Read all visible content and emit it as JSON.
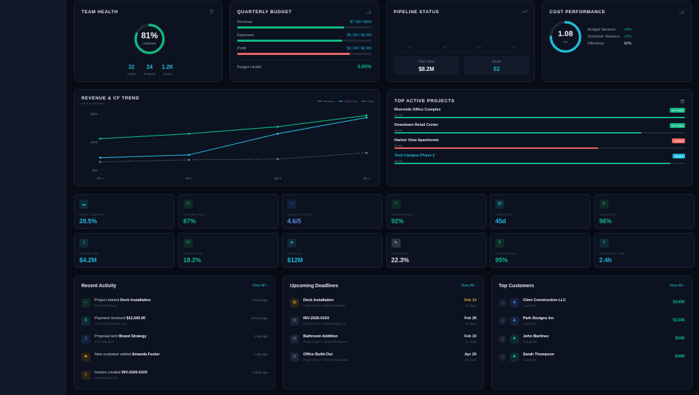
{
  "team_health": {
    "title": "TEAM HEALTH",
    "icon": "users-icon",
    "utilization_pct": 81,
    "utilization_label": "81%",
    "utilization_caption": "Utilization",
    "stats": [
      {
        "value": "32",
        "label": "Active"
      },
      {
        "value": "24",
        "label": "Projects"
      },
      {
        "value": "1.2K",
        "label": "Hours"
      }
    ]
  },
  "quarterly_budget": {
    "title": "QUARTERLY BUDGET",
    "icon": "bar-chart-icon",
    "rows": [
      {
        "label": "Revenue",
        "value": "$7.2M / $9M",
        "fill_pct": 80,
        "color": "#10b981"
      },
      {
        "label": "Expenses",
        "value": "$5.1M / $6.5M",
        "fill_pct": 78,
        "color": "#10b981"
      },
      {
        "label": "Profit",
        "value": "$2.1M / $2.5M",
        "fill_pct": 84,
        "color": "#f06767"
      }
    ],
    "health_label": "Budget Health",
    "health_value": "5.65%"
  },
  "pipeline": {
    "title": "PIPELINE STATUS",
    "icon": "trending-up-icon",
    "quarters": [
      "Q1",
      "Q2",
      "Q3",
      "Q4"
    ],
    "total_label": "Total Value",
    "total_value": "$8.2M",
    "deals_label": "Deals",
    "deals_value": "52"
  },
  "cost_performance": {
    "title": "COST PERFORMANCE",
    "icon": "bar-chart-icon",
    "cpi_value": "1.08",
    "cpi_label": "CPI",
    "cpi_ring_pct": 75,
    "rows": [
      {
        "label": "Budget Variance",
        "value": "+8%",
        "color": "#10b981"
      },
      {
        "label": "Schedule Variance",
        "value": "+2%",
        "color": "#10b981"
      },
      {
        "label": "Efficiency",
        "value": "92%",
        "color": "#e5e7eb"
      }
    ]
  },
  "trend": {
    "title": "REVENUE & CF TREND",
    "subtitle": "4-week performance",
    "legend": [
      {
        "name": "Revenue",
        "color": "#10b981"
      },
      {
        "name": "Cash Flow",
        "color": "#22b8d8"
      },
      {
        "name": "Profit",
        "color": "#6b7280"
      }
    ]
  },
  "chart_data": {
    "type": "line",
    "title": "REVENUE & CF TREND",
    "subtitle": "4-week performance",
    "x": [
      "Wk 1",
      "Wk 2",
      "Wk 3",
      "Wk 4"
    ],
    "ylim": [
      0,
      80
    ],
    "yticks": [
      0,
      40,
      80
    ],
    "ytick_labels": [
      "$0K",
      "$40K",
      "$80K"
    ],
    "ylabel": "",
    "xlabel": "",
    "grid": true,
    "legend_position": "top-right",
    "series": [
      {
        "name": "Revenue",
        "values": [
          45,
          52,
          62,
          78
        ],
        "color": "#10b981",
        "dashed": false
      },
      {
        "name": "Cash Flow",
        "values": [
          18,
          22,
          52,
          75
        ],
        "color": "#22b8d8",
        "dashed": false
      },
      {
        "name": "Profit",
        "values": [
          12,
          15,
          16,
          25
        ],
        "color": "#6b7280",
        "dashed": true
      }
    ]
  },
  "projects": {
    "title": "TOP ACTIVE PROJECTS",
    "icon": "layers-icon",
    "items": [
      {
        "name": "Riverside Office Complex",
        "amount": "$1.2M",
        "status": "On Track",
        "status_color": "#10b981",
        "progress_pct": 100,
        "bar_color": "#10b981",
        "name_color": "#e5e7eb"
      },
      {
        "name": "Downtown Retail Center",
        "amount": "$890K",
        "status": "On Track",
        "status_color": "#10b981",
        "progress_pct": 85,
        "bar_color": "#10b981",
        "name_color": "#e5e7eb"
      },
      {
        "name": "Harbor View Apartments",
        "amount": "$745K",
        "status": "At Risk",
        "status_color": "#f06767",
        "progress_pct": 70,
        "bar_color": "#f06767",
        "name_color": "#e5e7eb"
      },
      {
        "name": "Tech Campus Phase 2",
        "amount": "$620K",
        "status": "Ahead",
        "status_color": "#22b8d8",
        "progress_pct": 95,
        "bar_color": "#10b981",
        "name_color": "#22b8d8"
      }
    ]
  },
  "kpis": [
    {
      "label": "PROFIT MARGIN",
      "value": "28.5%",
      "icon": "bar-chart-icon",
      "glyph": "▂",
      "color": "#22b8d8",
      "bg": "#0f2a33"
    },
    {
      "label": "ON-TIME RATE",
      "value": "87%",
      "icon": "clock-icon",
      "glyph": "◷",
      "color": "#10b981",
      "bg": "#0f2a26"
    },
    {
      "label": "QUALITY SCORE",
      "value": "4.6/5",
      "icon": "award-icon",
      "glyph": "♁",
      "color": "#5b8def",
      "bg": "#14213d"
    },
    {
      "label": "TEAM MORALE",
      "value": "92%",
      "icon": "smile-icon",
      "glyph": "☺",
      "color": "#10b981",
      "bg": "#0f2a26"
    },
    {
      "label": "CASH DAYS",
      "value": "45d",
      "icon": "calendar-icon",
      "glyph": "▤",
      "color": "#22b8d8",
      "bg": "#0f2a33"
    },
    {
      "label": "ACCURACY",
      "value": "96%",
      "icon": "target-icon",
      "glyph": "◎",
      "color": "#10b981",
      "bg": "#0f2a26"
    },
    {
      "label": "BID VOLUME",
      "value": "$4.2M",
      "icon": "file-icon",
      "glyph": "▯",
      "color": "#22b8d8",
      "bg": "#0f2a33"
    },
    {
      "label": "LABOR COST",
      "value": "18.2%",
      "icon": "percent-icon",
      "glyph": "%",
      "color": "#10b981",
      "bg": "#0f2a26"
    },
    {
      "label": "BACKLOG",
      "value": "$12M",
      "icon": "box-icon",
      "glyph": "◈",
      "color": "#22b8d8",
      "bg": "#0f2a33"
    },
    {
      "label": "OVERHEAD",
      "value": "22.3%",
      "icon": "activity-icon",
      "glyph": "∿",
      "color": "#e5e7eb",
      "bg": "#2a3344"
    },
    {
      "label": "COLLECTIONS",
      "value": "95%",
      "icon": "dollar-icon",
      "glyph": "$",
      "color": "#10b981",
      "bg": "#0f2a26"
    },
    {
      "label": "RESPONSE TIME",
      "value": "2.4h",
      "icon": "zap-icon",
      "glyph": "ϟ",
      "color": "#22b8d8",
      "bg": "#0f2a33"
    }
  ],
  "recent_activity": {
    "title": "Recent Activity",
    "view_all": "View All ›",
    "items": [
      {
        "prefix": "Project started ",
        "bold": "Deck Installation",
        "sub": "Emily Rodriguez",
        "time": "2 hours ago",
        "icon": "folder-icon",
        "glyph": "▭",
        "color": "#10b981",
        "bg": "#0f2a26"
      },
      {
        "prefix": "Payment received ",
        "bold": "$12,500.00",
        "sub": "Chen Construction LLC",
        "time": "5 hours ago",
        "icon": "dollar-icon",
        "glyph": "$",
        "color": "#22b8d8",
        "bg": "#0f2a33"
      },
      {
        "prefix": "Proposal sent ",
        "bold": "Brand Strategy",
        "sub": "John Martinez",
        "time": "1 day ago",
        "icon": "file-icon",
        "glyph": "▯",
        "color": "#5b8def",
        "bg": "#14213d"
      },
      {
        "prefix": "New customer added ",
        "bold": "Amanda Foster",
        "sub": "",
        "time": "1 day ago",
        "icon": "users-icon",
        "glyph": "☻",
        "color": "#d39a2c",
        "bg": "#2a2318"
      },
      {
        "prefix": "Invoice created ",
        "bold": "INV-2026-0103",
        "sub": "Park Designs Inc",
        "time": "2 days ago",
        "icon": "invoice-icon",
        "glyph": "▯",
        "color": "#d39a2c",
        "bg": "#2a2318"
      }
    ]
  },
  "deadlines": {
    "title": "Upcoming Deadlines",
    "view_all": "View All ›",
    "items": [
      {
        "name": "Deck Installation",
        "sub": "Project Due • Emily Rodriguez",
        "date": "Feb 14",
        "days": "12 days",
        "date_color": "#e0a53a",
        "icon_color": "#d39a2c",
        "icon_bg": "#2a2318"
      },
      {
        "name": "INV-2026-0103",
        "sub": "Invoice Due • Park Designs Inc",
        "date": "Feb 28",
        "days": "26 days",
        "date_color": "#e5e7eb",
        "icon_color": "#6b7280",
        "icon_bg": "#1a2233"
      },
      {
        "name": "Bathroom Addition",
        "sub": "Project Start • Sarah Thompson",
        "date": "Feb 19",
        "days": "17 days",
        "date_color": "#e5e7eb",
        "icon_color": "#6b7280",
        "icon_bg": "#1a2233"
      },
      {
        "name": "Office Build-Out",
        "sub": "Project Due • Chen Construction",
        "date": "Apr 29",
        "days": "86 days",
        "date_color": "#e5e7eb",
        "icon_color": "#6b7280",
        "icon_bg": "#1a2233"
      }
    ]
  },
  "customers": {
    "title": "Top Customers",
    "view_all": "View All ›",
    "items": [
      {
        "rank": "1",
        "name": "Chen Construction LLC",
        "sub": "8 projects",
        "value": "$145K",
        "icon": "building-icon",
        "glyph": "◈",
        "color": "#5b8def",
        "bg": "#14213d"
      },
      {
        "rank": "2",
        "name": "Park Designs Inc",
        "sub": "6 projects",
        "value": "$134K",
        "icon": "building-icon",
        "glyph": "◈",
        "color": "#5b8def",
        "bg": "#14213d"
      },
      {
        "rank": "3",
        "name": "John Martinez",
        "sub": "3 projects",
        "value": "$54K",
        "icon": "user-icon",
        "glyph": "☻",
        "color": "#14b8a6",
        "bg": "#0f2a2a"
      },
      {
        "rank": "4",
        "name": "Sarah Thompson",
        "sub": "2 projects",
        "value": "$40K",
        "icon": "user-icon",
        "glyph": "☻",
        "color": "#14b8a6",
        "bg": "#0f2a2a"
      }
    ]
  }
}
